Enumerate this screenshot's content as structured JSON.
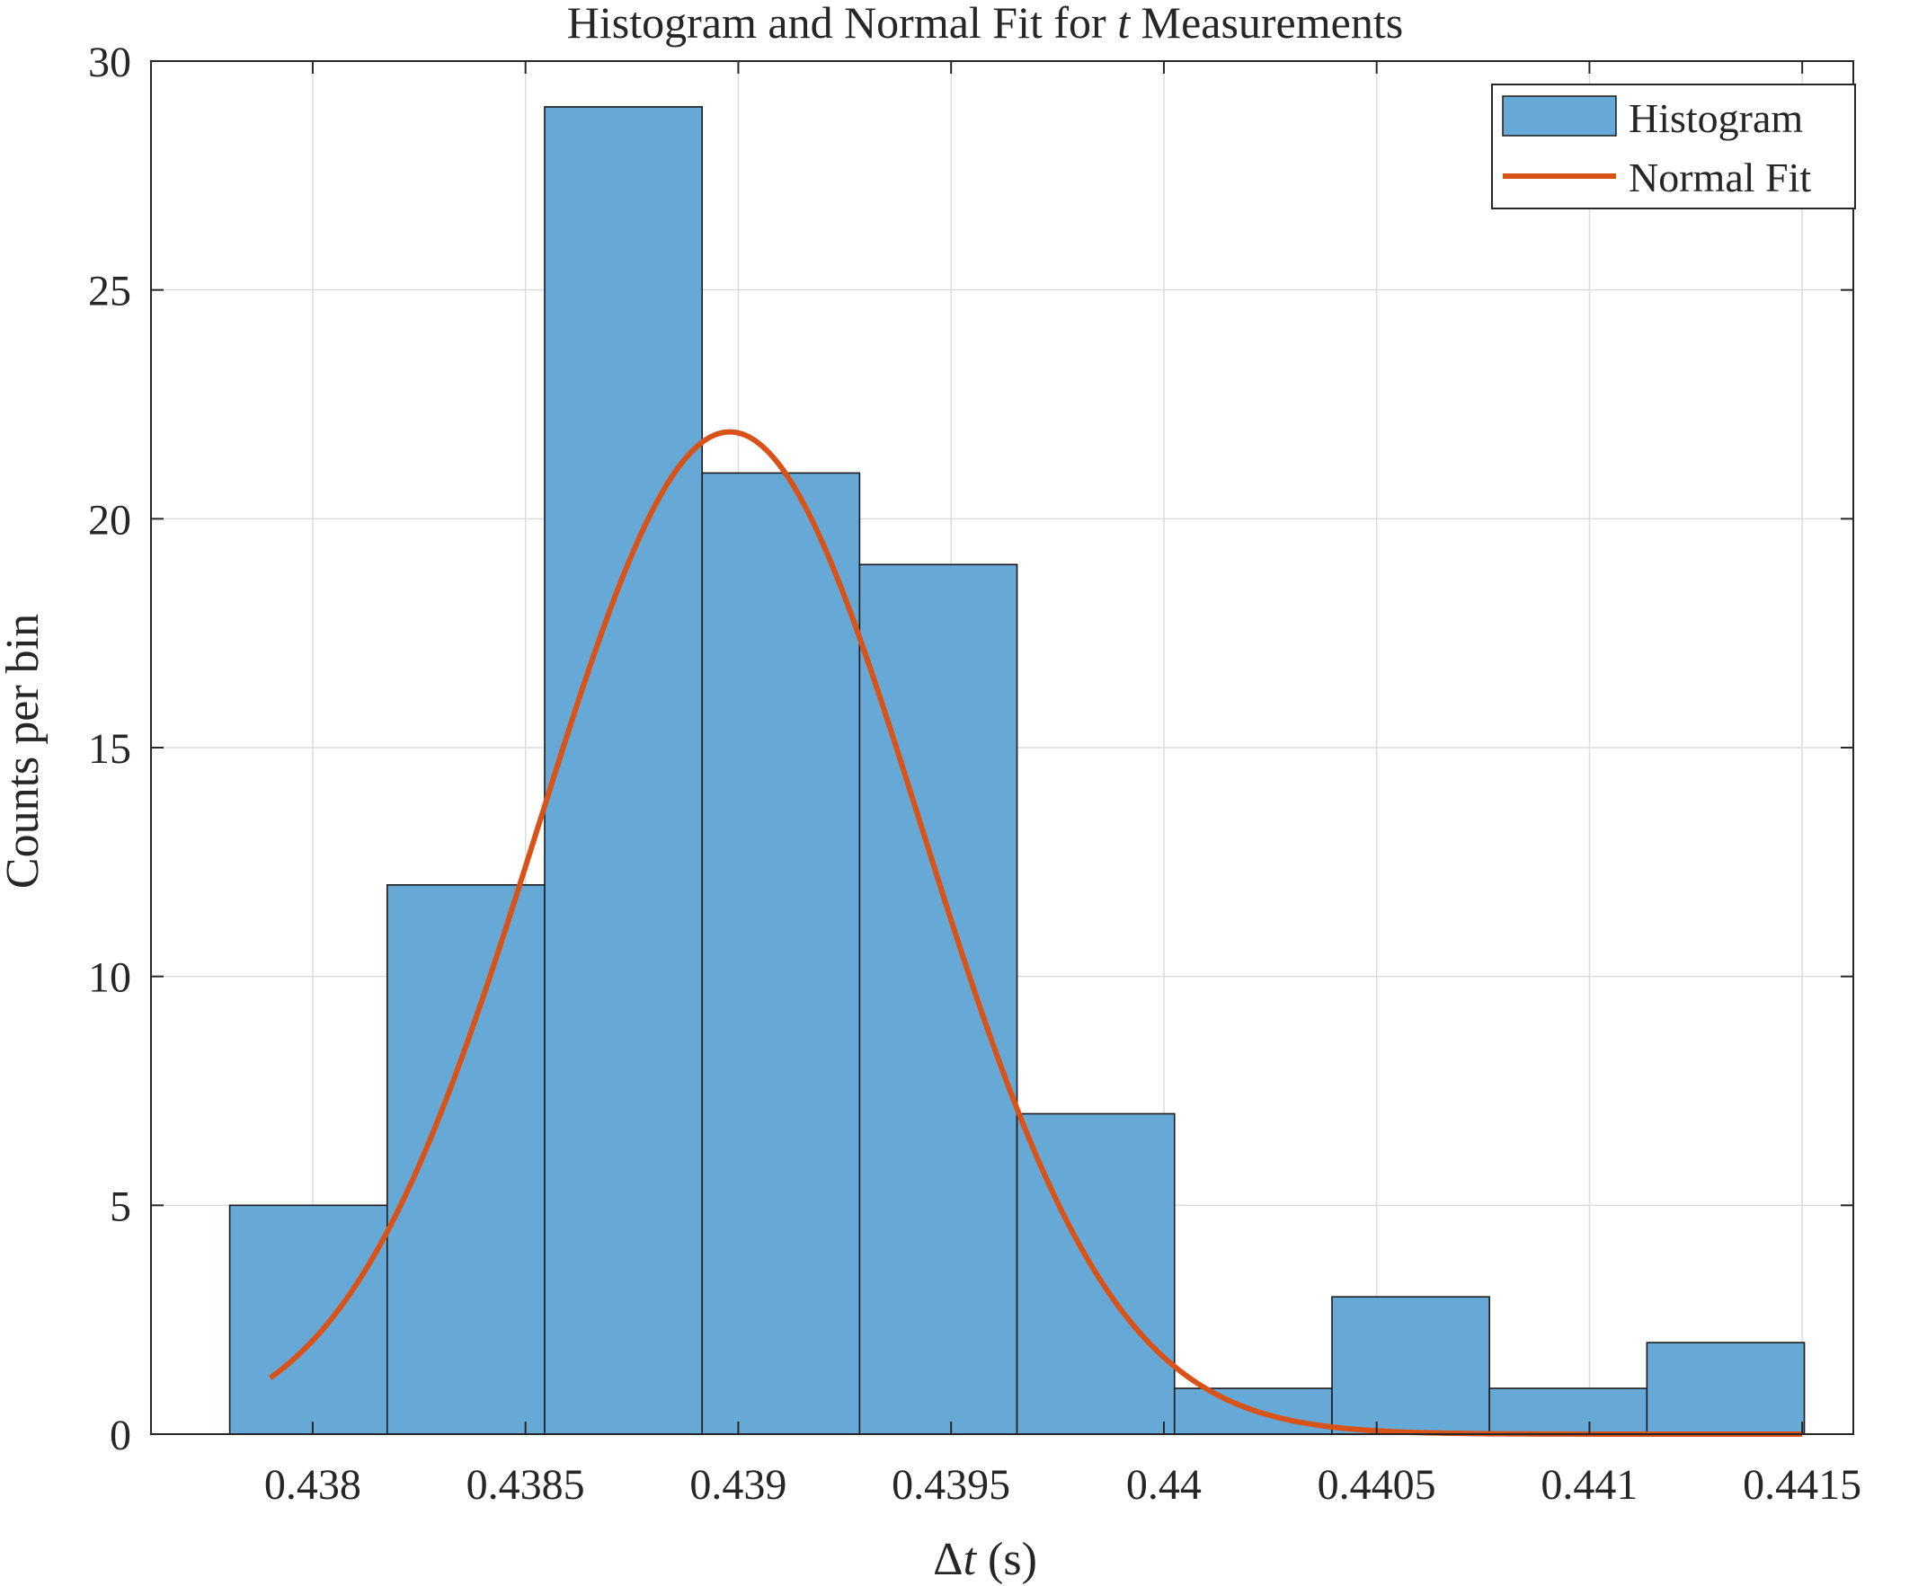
{
  "chart_data": {
    "type": "bar",
    "title": {
      "prefix": "Histogram and Normal Fit for ",
      "var": "t",
      "suffix": " Measurements"
    },
    "xlabel": {
      "prefix": "Δ",
      "var": "t",
      "suffix": " (s)"
    },
    "ylabel": "Counts per bin",
    "xlim": [
      0.43762,
      0.44162
    ],
    "ylim": [
      0,
      30
    ],
    "xticks": [
      0.438,
      0.4385,
      0.439,
      0.4395,
      0.44,
      0.4405,
      0.441,
      0.4415
    ],
    "xtick_labels": [
      "0.438",
      "0.4385",
      "0.439",
      "0.4395",
      "0.44",
      "0.4405",
      "0.441",
      "0.4415"
    ],
    "yticks": [
      0,
      5,
      10,
      15,
      20,
      25,
      30
    ],
    "ytick_labels": [
      "0",
      "5",
      "10",
      "15",
      "20",
      "25",
      "30"
    ],
    "grid": true,
    "legend_position": "top-right",
    "series": [
      {
        "name": "Histogram",
        "kind": "histogram",
        "color": "#66a9d7",
        "edge_color": "#1a1a1a",
        "bin_edges": [
          0.437805,
          0.438175,
          0.438545,
          0.438915,
          0.439285,
          0.439655,
          0.440025,
          0.440395,
          0.440765,
          0.441135,
          0.441505
        ],
        "counts": [
          5,
          12,
          29,
          21,
          19,
          7,
          1,
          3,
          1,
          2
        ]
      },
      {
        "name": "Normal Fit",
        "kind": "line",
        "color": "#d95319",
        "mean": 0.43898,
        "sigma": 0.00045,
        "peak": 21.9,
        "x_range": [
          0.4379,
          0.4415
        ]
      }
    ]
  }
}
